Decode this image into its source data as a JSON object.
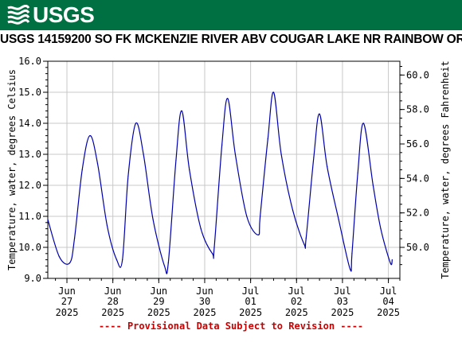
{
  "brand": {
    "logo_text": "USGS",
    "banner_color": "#006f41"
  },
  "title": "USGS 14159200 SO FK MCKENZIE RIVER ABV COUGAR LAKE NR RAINBOW OR",
  "footnote": "---- Provisional Data Subject to Revision ----",
  "chart_data": {
    "type": "line",
    "ylabel_left": "Temperature, water, degrees Celsius",
    "ylabel_right": "Temperature, water, degrees Fahrenheit",
    "ylim": [
      9.0,
      16.0
    ],
    "yticks": [
      "9.0",
      "10.0",
      "11.0",
      "12.0",
      "13.0",
      "14.0",
      "15.0",
      "16.0"
    ],
    "right_yticks": [
      "50.0",
      "52.0",
      "54.0",
      "56.0",
      "58.0",
      "60.0"
    ],
    "xlim": [
      "2025-06-26T14:00",
      "2025-07-04T06:00"
    ],
    "xticks": [
      {
        "month": "Jun",
        "day": "27",
        "year": "2025",
        "date": "2025-06-27"
      },
      {
        "month": "Jun",
        "day": "28",
        "year": "2025",
        "date": "2025-06-28"
      },
      {
        "month": "Jun",
        "day": "29",
        "year": "2025",
        "date": "2025-06-29"
      },
      {
        "month": "Jun",
        "day": "30",
        "year": "2025",
        "date": "2025-06-30"
      },
      {
        "month": "Jul",
        "day": "01",
        "year": "2025",
        "date": "2025-07-01"
      },
      {
        "month": "Jul",
        "day": "02",
        "year": "2025",
        "date": "2025-07-02"
      },
      {
        "month": "Jul",
        "day": "03",
        "year": "2025",
        "date": "2025-07-03"
      },
      {
        "month": "Jul",
        "day": "04",
        "year": "2025",
        "date": "2025-07-04"
      }
    ],
    "line_color": "#0000aa",
    "grid": true,
    "series": [
      {
        "points": [
          [
            "2025-06-26T14:00",
            10.9
          ],
          [
            "2025-06-26T20:00",
            9.7
          ],
          [
            "2025-06-27T01:30",
            9.5
          ],
          [
            "2025-06-27T04:00",
            10.3
          ],
          [
            "2025-06-27T08:00",
            12.5
          ],
          [
            "2025-06-27T12:00",
            13.6
          ],
          [
            "2025-06-27T16:00",
            12.7
          ],
          [
            "2025-06-27T21:00",
            10.7
          ],
          [
            "2025-06-28T02:00",
            9.6
          ],
          [
            "2025-06-28T05:00",
            9.6
          ],
          [
            "2025-06-28T08:00",
            12.3
          ],
          [
            "2025-06-28T12:00",
            14.0
          ],
          [
            "2025-06-28T16:00",
            13.0
          ],
          [
            "2025-06-28T21:00",
            10.9
          ],
          [
            "2025-06-29T03:00",
            9.4
          ],
          [
            "2025-06-29T05:00",
            9.5
          ],
          [
            "2025-06-29T09:00",
            12.8
          ],
          [
            "2025-06-29T12:00",
            14.4
          ],
          [
            "2025-06-29T16:00",
            12.5
          ],
          [
            "2025-06-29T22:00",
            10.6
          ],
          [
            "2025-06-30T04:00",
            9.8
          ],
          [
            "2025-06-30T05:00",
            10.0
          ],
          [
            "2025-06-30T09:00",
            13.3
          ],
          [
            "2025-06-30T12:00",
            14.8
          ],
          [
            "2025-06-30T16:00",
            13.0
          ],
          [
            "2025-06-30T22:00",
            11.0
          ],
          [
            "2025-07-01T04:00",
            10.4
          ],
          [
            "2025-07-01T05:00",
            11.0
          ],
          [
            "2025-07-01T09:00",
            13.5
          ],
          [
            "2025-07-01T12:00",
            15.0
          ],
          [
            "2025-07-01T16:00",
            13.0
          ],
          [
            "2025-07-01T22:00",
            11.2
          ],
          [
            "2025-07-02T04:00",
            10.1
          ],
          [
            "2025-07-02T05:00",
            10.3
          ],
          [
            "2025-07-02T09:00",
            12.9
          ],
          [
            "2025-07-02T12:00",
            14.3
          ],
          [
            "2025-07-02T16:00",
            12.6
          ],
          [
            "2025-07-02T22:00",
            10.9
          ],
          [
            "2025-07-03T04:00",
            9.3
          ],
          [
            "2025-07-03T05:00",
            9.8
          ],
          [
            "2025-07-03T08:00",
            12.4
          ],
          [
            "2025-07-03T11:00",
            14.0
          ],
          [
            "2025-07-03T16:00",
            12.0
          ],
          [
            "2025-07-03T20:00",
            10.6
          ],
          [
            "2025-07-04T01:00",
            9.5
          ],
          [
            "2025-07-04T02:00",
            9.6
          ]
        ]
      }
    ]
  }
}
